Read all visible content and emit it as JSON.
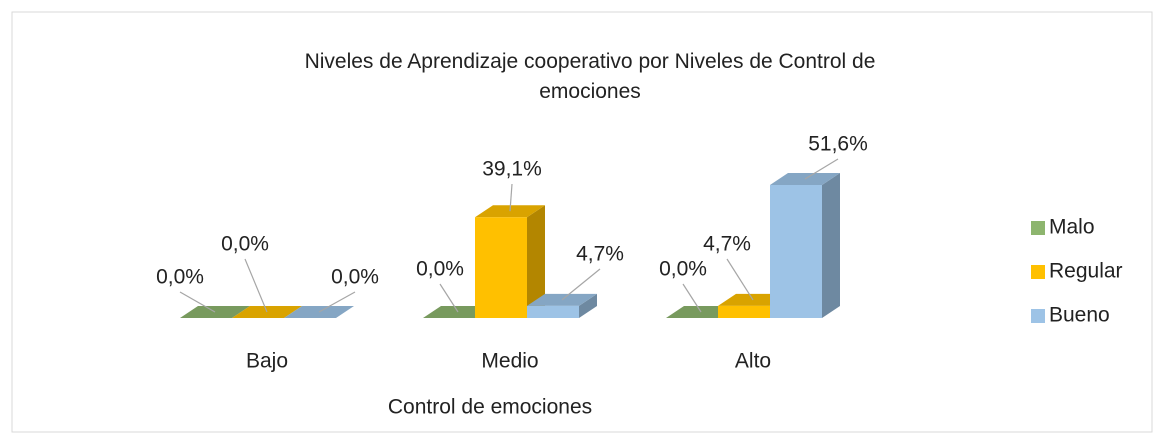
{
  "chart_data": {
    "type": "bar3d",
    "title": "Niveles de Aprendizaje cooperativo por Niveles de Control de emociones",
    "x_label": "Control de emociones",
    "categories": [
      "Bajo",
      "Medio",
      "Alto"
    ],
    "series": [
      {
        "name": "Malo",
        "color": "#8db56e",
        "values": [
          0,
          0,
          0
        ],
        "value_labels": [
          "0,0%",
          "0,0%",
          "0,0%"
        ]
      },
      {
        "name": "Regular",
        "color": "#ffc000",
        "values": [
          0,
          39.1,
          4.7
        ],
        "value_labels": [
          "0,0%",
          "39,1%",
          "4,7%"
        ]
      },
      {
        "name": "Bueno",
        "color": "#9dc3e6",
        "values": [
          0,
          4.7,
          51.6
        ],
        "value_labels": [
          "0,0%",
          "4,7%",
          "51,6%"
        ]
      }
    ],
    "legend": "right"
  }
}
